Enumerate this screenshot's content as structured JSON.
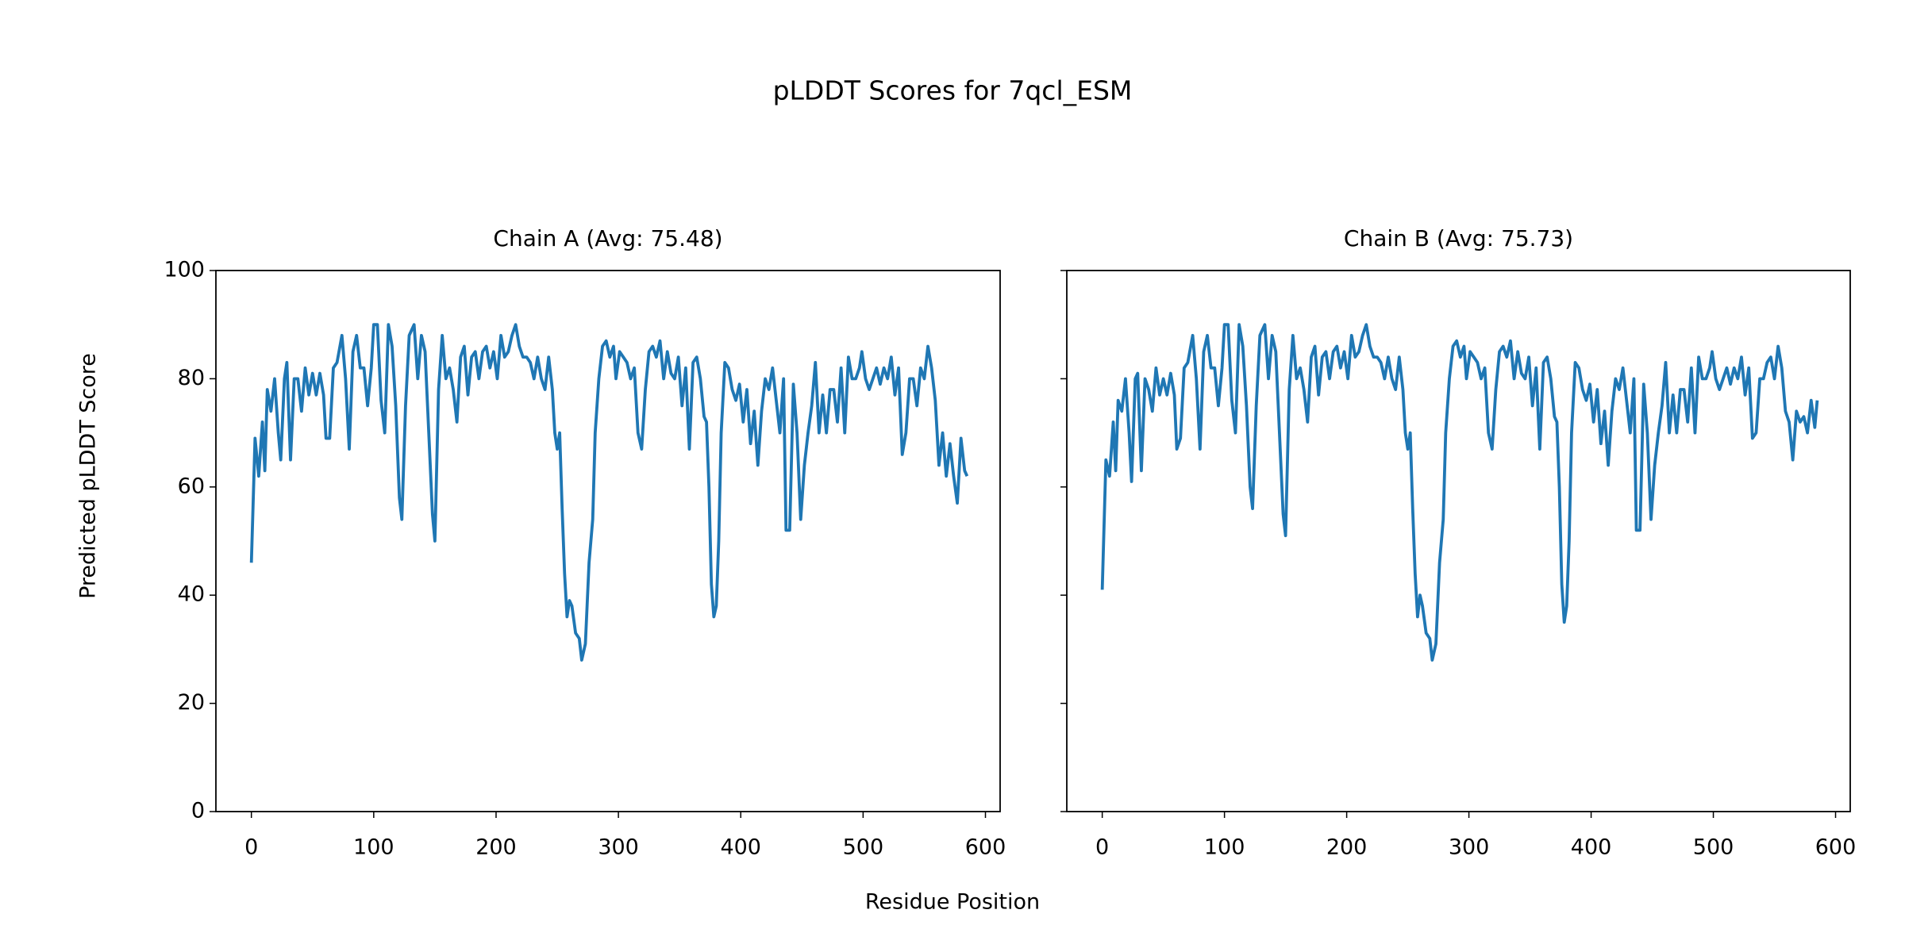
{
  "title": "pLDDT Scores for 7qcl_ESM",
  "xlabel": "Residue Position",
  "ylabel": "Predicted pLDDT Score",
  "chart_data": [
    {
      "type": "line",
      "title": "Chain A (Avg: 75.48)",
      "x": [
        0,
        3,
        6,
        9,
        11,
        13,
        16,
        19,
        22,
        24,
        27,
        29,
        32,
        35,
        38,
        41,
        44,
        47,
        50,
        53,
        56,
        59,
        61,
        64,
        67,
        70,
        74,
        77,
        80,
        83,
        86,
        89,
        92,
        95,
        98,
        100,
        103,
        106,
        109,
        112,
        115,
        118,
        121,
        123,
        126,
        129,
        133,
        136,
        139,
        142,
        145,
        148,
        150,
        153,
        156,
        159,
        162,
        165,
        168,
        171,
        174,
        177,
        180,
        183,
        186,
        189,
        192,
        195,
        198,
        201,
        204,
        207,
        210,
        213,
        216,
        219,
        222,
        225,
        228,
        231,
        234,
        237,
        240,
        243,
        246,
        248,
        250,
        252,
        254,
        256,
        258,
        260,
        262,
        265,
        268,
        270,
        273,
        276,
        279,
        281,
        284,
        287,
        290,
        293,
        296,
        298,
        301,
        304,
        307,
        310,
        313,
        316,
        319,
        322,
        325,
        328,
        331,
        334,
        337,
        340,
        343,
        346,
        349,
        352,
        355,
        358,
        361,
        364,
        367,
        370,
        372,
        374,
        376,
        378,
        380,
        382,
        384,
        387,
        390,
        393,
        396,
        399,
        402,
        405,
        408,
        411,
        414,
        417,
        420,
        423,
        426,
        429,
        432,
        435,
        437,
        440,
        443,
        446,
        449,
        452,
        455,
        458,
        461,
        464,
        467,
        470,
        473,
        476,
        479,
        482,
        485,
        488,
        491,
        494,
        497,
        499,
        502,
        505,
        508,
        511,
        514,
        517,
        520,
        523,
        526,
        529,
        532,
        535,
        538,
        541,
        544,
        547,
        550,
        553,
        556,
        559,
        562,
        565,
        568,
        571,
        574,
        577,
        580,
        583,
        585
      ],
      "series": [
        {
          "color": "#1f77b4",
          "values": [
            46,
            69,
            62,
            72,
            63,
            78,
            74,
            80,
            70,
            65,
            80,
            83,
            65,
            80,
            80,
            74,
            82,
            77,
            81,
            77,
            81,
            77,
            69,
            69,
            82,
            83,
            88,
            80,
            67,
            85,
            88,
            82,
            82,
            75,
            82,
            90,
            90,
            76,
            70,
            90,
            86,
            75,
            58,
            54,
            75,
            88,
            90,
            80,
            88,
            85,
            70,
            55,
            50,
            78,
            88,
            80,
            82,
            78,
            72,
            84,
            86,
            77,
            84,
            85,
            80,
            85,
            86,
            82,
            85,
            80,
            88,
            84,
            85,
            88,
            90,
            86,
            84,
            84,
            83,
            80,
            84,
            80,
            78,
            84,
            78,
            70,
            67,
            70,
            56,
            44,
            36,
            39,
            38,
            33,
            32,
            28,
            31,
            46,
            54,
            70,
            80,
            86,
            87,
            84,
            86,
            80,
            85,
            84,
            83,
            80,
            82,
            70,
            67,
            78,
            85,
            86,
            84,
            87,
            80,
            85,
            81,
            80,
            84,
            75,
            82,
            67,
            83,
            84,
            80,
            73,
            72,
            60,
            42,
            36,
            38,
            50,
            70,
            83,
            82,
            78,
            76,
            79,
            72,
            78,
            68,
            74,
            64,
            74,
            80,
            78,
            82,
            76,
            70,
            80,
            52,
            52,
            79,
            70,
            54,
            64,
            70,
            75,
            83,
            70,
            77,
            70,
            78,
            78,
            72,
            82,
            70,
            84,
            80,
            80,
            82,
            85,
            80,
            78,
            80,
            82,
            79,
            82,
            80,
            84,
            77,
            82,
            66,
            70,
            80,
            80,
            75,
            82,
            80,
            86,
            82,
            76,
            64,
            70,
            62,
            68,
            62,
            57,
            69,
            63,
            62
          ]
        }
      ],
      "xlim": [
        -29,
        612
      ],
      "xticks": [
        0,
        100,
        200,
        300,
        400,
        500,
        600
      ],
      "ylim": [
        0,
        100
      ],
      "yticks": [
        0,
        20,
        40,
        60,
        80,
        100
      ]
    },
    {
      "type": "line",
      "title": "Chain B (Avg: 75.73)",
      "x": [
        0,
        3,
        6,
        9,
        11,
        13,
        16,
        19,
        22,
        24,
        27,
        29,
        32,
        35,
        38,
        41,
        44,
        47,
        50,
        53,
        56,
        59,
        61,
        64,
        67,
        70,
        74,
        77,
        80,
        83,
        86,
        89,
        92,
        95,
        98,
        100,
        103,
        106,
        109,
        112,
        115,
        118,
        121,
        123,
        126,
        129,
        133,
        136,
        139,
        142,
        145,
        148,
        150,
        153,
        156,
        159,
        162,
        165,
        168,
        171,
        174,
        177,
        180,
        183,
        186,
        189,
        192,
        195,
        198,
        201,
        204,
        207,
        210,
        213,
        216,
        219,
        222,
        225,
        228,
        231,
        234,
        237,
        240,
        243,
        246,
        248,
        250,
        252,
        254,
        256,
        258,
        260,
        262,
        265,
        268,
        270,
        273,
        276,
        279,
        281,
        284,
        287,
        290,
        293,
        296,
        298,
        301,
        304,
        307,
        310,
        313,
        316,
        319,
        322,
        325,
        328,
        331,
        334,
        337,
        340,
        343,
        346,
        349,
        352,
        355,
        358,
        361,
        364,
        367,
        370,
        372,
        374,
        376,
        378,
        380,
        382,
        384,
        387,
        390,
        393,
        396,
        399,
        402,
        405,
        408,
        411,
        414,
        417,
        420,
        423,
        426,
        429,
        432,
        435,
        437,
        440,
        443,
        446,
        449,
        452,
        455,
        458,
        461,
        464,
        467,
        470,
        473,
        476,
        479,
        482,
        485,
        488,
        491,
        494,
        497,
        499,
        502,
        505,
        508,
        511,
        514,
        517,
        520,
        523,
        526,
        529,
        532,
        535,
        538,
        541,
        544,
        547,
        550,
        553,
        556,
        559,
        562,
        565,
        568,
        571,
        574,
        577,
        580,
        583,
        585
      ],
      "series": [
        {
          "color": "#1f77b4",
          "values": [
            41,
            65,
            62,
            72,
            63,
            76,
            74,
            80,
            70,
            61,
            80,
            81,
            63,
            80,
            78,
            74,
            82,
            77,
            80,
            77,
            81,
            77,
            67,
            69,
            82,
            83,
            88,
            80,
            67,
            85,
            88,
            82,
            82,
            75,
            82,
            90,
            90,
            76,
            70,
            90,
            86,
            75,
            60,
            56,
            75,
            88,
            90,
            80,
            88,
            85,
            70,
            55,
            51,
            78,
            88,
            80,
            82,
            78,
            72,
            84,
            86,
            77,
            84,
            85,
            80,
            85,
            86,
            82,
            85,
            80,
            88,
            84,
            85,
            88,
            90,
            86,
            84,
            84,
            83,
            80,
            84,
            80,
            78,
            84,
            78,
            70,
            67,
            70,
            56,
            44,
            36,
            40,
            38,
            33,
            32,
            28,
            31,
            46,
            54,
            70,
            80,
            86,
            87,
            84,
            86,
            80,
            85,
            84,
            83,
            80,
            82,
            70,
            67,
            78,
            85,
            86,
            84,
            87,
            80,
            85,
            81,
            80,
            84,
            75,
            82,
            67,
            83,
            84,
            80,
            73,
            72,
            60,
            42,
            35,
            38,
            50,
            70,
            83,
            82,
            78,
            76,
            79,
            72,
            78,
            68,
            74,
            64,
            74,
            80,
            78,
            82,
            76,
            70,
            80,
            52,
            52,
            79,
            70,
            54,
            64,
            70,
            75,
            83,
            70,
            77,
            70,
            78,
            78,
            72,
            82,
            70,
            84,
            80,
            80,
            82,
            85,
            80,
            78,
            80,
            82,
            79,
            82,
            80,
            84,
            77,
            82,
            69,
            70,
            80,
            80,
            83,
            84,
            80,
            86,
            82,
            74,
            72,
            65,
            74,
            72,
            73,
            70,
            76,
            71,
            76
          ]
        }
      ],
      "xlim": [
        -29,
        612
      ],
      "xticks": [
        0,
        100,
        200,
        300,
        400,
        500,
        600
      ]
    }
  ]
}
